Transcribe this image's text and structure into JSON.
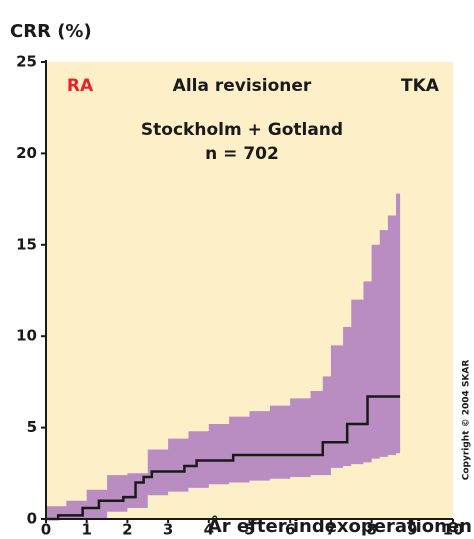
{
  "chart_data": {
    "type": "step",
    "title": "CRR (%)",
    "xlabel": "År efter indexoperationen",
    "annotations": [
      "RA",
      "Alla revisioner",
      "TKA",
      "Stockholm + Gotland",
      "n = 702"
    ],
    "annotation_colors": [
      "#e3262b",
      "#1a1a1a",
      "#1a1a1a",
      "#1a1a1a",
      "#1a1a1a"
    ],
    "copyright": "Copyright © 2004 SKAR",
    "xlim": [
      0,
      10
    ],
    "xticks": [
      0,
      1,
      2,
      3,
      4,
      5,
      6,
      7,
      8,
      9,
      10
    ],
    "ylim": [
      0,
      25
    ],
    "yticks": [
      0,
      5,
      10,
      15,
      20,
      25
    ],
    "plot_background": "#fdf0c9",
    "line": {
      "color": "#1a1a1a",
      "x": [
        0,
        0.3,
        0.6,
        0.9,
        1.3,
        1.9,
        2.2,
        2.4,
        2.6,
        3.4,
        3.7,
        4.6,
        6.8,
        7.4,
        7.9,
        8.7
      ],
      "y": [
        0,
        0.2,
        0.2,
        0.6,
        1.0,
        1.2,
        2.0,
        2.3,
        2.6,
        2.9,
        3.2,
        3.5,
        4.2,
        5.2,
        6.7,
        6.7
      ]
    },
    "band": {
      "color": "#b98cc2",
      "x": [
        0,
        0.5,
        1,
        1.5,
        2,
        2.5,
        3,
        3.5,
        4,
        4.5,
        5,
        5.5,
        6,
        6.5,
        6.8,
        7,
        7.3,
        7.5,
        7.8,
        8,
        8.2,
        8.4,
        8.6,
        8.7
      ],
      "upper": [
        0.7,
        1.0,
        1.6,
        2.4,
        2.5,
        3.8,
        4.4,
        4.8,
        5.2,
        5.6,
        5.9,
        6.2,
        6.6,
        7.0,
        7.8,
        9.5,
        10.5,
        12.0,
        13.0,
        15.0,
        15.8,
        16.6,
        17.8,
        17.8
      ],
      "lower": [
        0,
        0,
        0,
        0.4,
        0.6,
        1.3,
        1.5,
        1.7,
        1.9,
        2.0,
        2.1,
        2.2,
        2.3,
        2.4,
        2.4,
        2.8,
        2.9,
        3.0,
        3.1,
        3.3,
        3.4,
        3.5,
        3.6,
        3.6
      ]
    }
  }
}
